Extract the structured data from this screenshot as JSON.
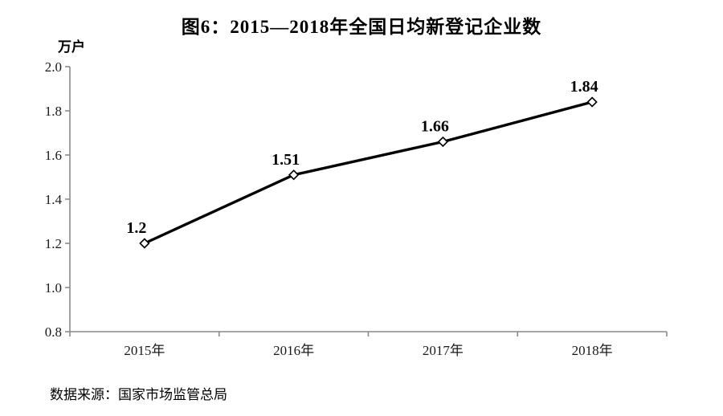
{
  "page": {
    "title": "图6：2015—2018年全国日均新登记企业数",
    "source_note": "数据来源：国家市场监管总局"
  },
  "chart_data": {
    "type": "line",
    "title": "图6：2015—2018年全国日均新登记企业数",
    "unit_label": "万户",
    "xlabel": "",
    "ylabel": "万户",
    "categories": [
      "2015年",
      "2016年",
      "2017年",
      "2018年"
    ],
    "values": [
      1.2,
      1.51,
      1.66,
      1.84
    ],
    "data_labels": [
      "1.2",
      "1.51",
      "1.66",
      "1.84"
    ],
    "ylim": [
      0.8,
      2.0
    ],
    "ytick_step": 0.2,
    "ytick_labels": [
      "0.8",
      "1.0",
      "1.2",
      "1.4",
      "1.6",
      "1.8",
      "2.0"
    ],
    "grid": false,
    "legend": "none",
    "line_color": "#000000",
    "marker": "open-diamond",
    "marker_fill": "#ffffff",
    "axis_color": "#8a8a8a",
    "source": "数据来源：国家市场监管总局"
  }
}
